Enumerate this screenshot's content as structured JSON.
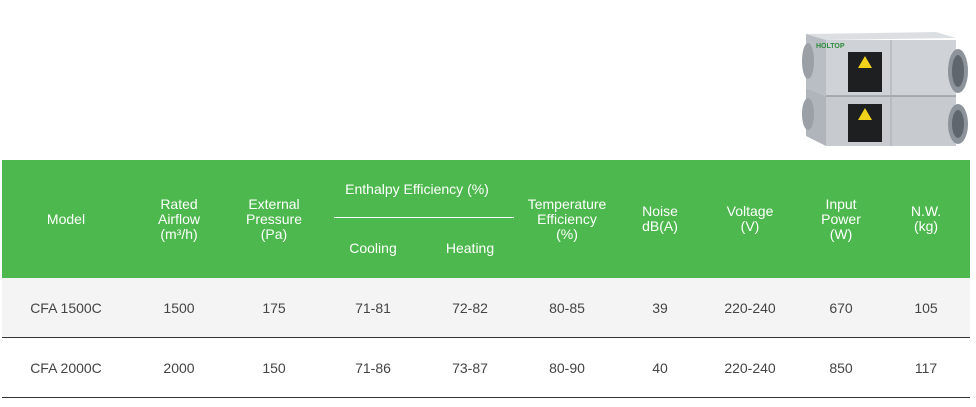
{
  "product": {
    "brand_label": "HOLTOP"
  },
  "table": {
    "headers": {
      "model": "Model",
      "rated_airflow": "Rated\nAirflow\n(m³/h)",
      "external_pressure": "External\nPressure\n(Pa)",
      "enthalpy_efficiency": "Enthalpy Efficiency (%)",
      "cooling": "Cooling",
      "heating": "Heating",
      "temperature_efficiency": "Temperature\nEfficiency\n(%)",
      "noise": "Noise\ndB(A)",
      "voltage": "Voltage\n(V)",
      "input_power": "Input\nPower\n(W)",
      "nw": "N.W.\n(kg)"
    },
    "rows": [
      {
        "model": "CFA 1500C",
        "airflow": "1500",
        "pressure": "175",
        "cooling": "71-81",
        "heating": "72-82",
        "temp_eff": "80-85",
        "noise": "39",
        "voltage": "220-240",
        "power": "670",
        "nw": "105"
      },
      {
        "model": "CFA 2000C",
        "airflow": "2000",
        "pressure": "150",
        "cooling": "71-86",
        "heating": "73-87",
        "temp_eff": "80-90",
        "noise": "40",
        "voltage": "220-240",
        "power": "850",
        "nw": "117"
      }
    ]
  },
  "colors": {
    "header_bg": "#4db84d",
    "header_text": "#ffffff",
    "row_bg_alt": "#f4f4f4",
    "cell_text": "#444444"
  }
}
